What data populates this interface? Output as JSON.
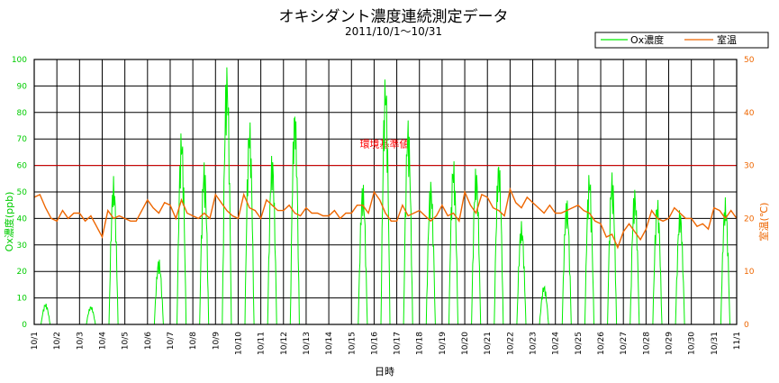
{
  "chart_data": {
    "type": "line",
    "title": "オキシダント濃度連続測定データ",
    "subtitle": "2011/10/1～10/31",
    "xlabel": "日時",
    "ylabel_left": "Ox濃度(ppb)",
    "ylabel_right": "室温(℃)",
    "x_tick_labels": [
      "10/1",
      "10/2",
      "10/3",
      "10/4",
      "10/5",
      "10/6",
      "10/7",
      "10/8",
      "10/9",
      "10/10",
      "10/11",
      "10/12",
      "10/13",
      "10/14",
      "10/15",
      "10/16",
      "10/17",
      "10/18",
      "10/19",
      "10/20",
      "10/21",
      "10/22",
      "10/23",
      "10/24",
      "10/25",
      "10/26",
      "10/27",
      "10/28",
      "10/29",
      "10/30",
      "10/31",
      "11/1"
    ],
    "yleft_ticks": [
      0,
      10,
      20,
      30,
      40,
      50,
      60,
      70,
      80,
      90,
      100
    ],
    "yright_ticks": [
      0,
      10,
      20,
      30,
      40,
      50
    ],
    "ylim_left": [
      0,
      100
    ],
    "ylim_right": [
      0,
      50
    ],
    "grid": true,
    "legend_position": "top-right",
    "reference_line": {
      "value": 60,
      "label": "環境基準値",
      "color": "#dd0000"
    },
    "series": [
      {
        "name": "Ox濃度",
        "axis": "left",
        "color": "#00ee00",
        "daily_peaks": [
          8,
          0,
          7,
          56,
          0,
          25,
          74,
          62,
          99,
          78,
          65,
          83,
          0,
          0,
          54,
          95,
          78,
          55,
          63,
          60,
          63,
          39,
          15,
          48,
          58,
          58,
          52,
          48,
          44,
          0,
          48
        ]
      },
      {
        "name": "室温",
        "axis": "right",
        "color": "#ee6600",
        "daily": [
          [
            0,
            24
          ],
          [
            0.25,
            24.5
          ],
          [
            0.5,
            22
          ],
          [
            0.75,
            20
          ],
          [
            1,
            19.5
          ],
          [
            1.25,
            21.5
          ],
          [
            1.5,
            20
          ],
          [
            1.75,
            21
          ],
          [
            2,
            21
          ],
          [
            2.25,
            19.5
          ],
          [
            2.5,
            20.5
          ],
          [
            2.75,
            18.5
          ],
          [
            3,
            16.5
          ],
          [
            3.25,
            21.5
          ],
          [
            3.5,
            20
          ],
          [
            3.75,
            20.5
          ],
          [
            4,
            20
          ],
          [
            4.25,
            19.5
          ],
          [
            4.5,
            19.5
          ],
          [
            4.75,
            21.5
          ],
          [
            5,
            23.5
          ],
          [
            5.25,
            22
          ],
          [
            5.5,
            21
          ],
          [
            5.75,
            23
          ],
          [
            6,
            22.5
          ],
          [
            6.25,
            20
          ],
          [
            6.5,
            23.5
          ],
          [
            6.75,
            21
          ],
          [
            7,
            20.5
          ],
          [
            7.25,
            20
          ],
          [
            7.5,
            21
          ],
          [
            7.75,
            20
          ],
          [
            8,
            24.5
          ],
          [
            8.25,
            23
          ],
          [
            8.5,
            21.5
          ],
          [
            8.75,
            20.5
          ],
          [
            9,
            20
          ],
          [
            9.25,
            24.5
          ],
          [
            9.5,
            22
          ],
          [
            9.75,
            21.5
          ],
          [
            10,
            20
          ],
          [
            10.25,
            23.5
          ],
          [
            10.5,
            22.5
          ],
          [
            10.75,
            21.5
          ],
          [
            11,
            21.5
          ],
          [
            11.25,
            22.5
          ],
          [
            11.5,
            21
          ],
          [
            11.75,
            20.5
          ],
          [
            12,
            22
          ],
          [
            12.25,
            21
          ],
          [
            12.5,
            21
          ],
          [
            12.75,
            20.5
          ],
          [
            13,
            20.5
          ],
          [
            13.25,
            21.5
          ],
          [
            13.5,
            20
          ],
          [
            13.75,
            21
          ],
          [
            14,
            21
          ],
          [
            14.25,
            22.5
          ],
          [
            14.5,
            22.5
          ],
          [
            14.75,
            21
          ],
          [
            15,
            25
          ],
          [
            15.25,
            23.5
          ],
          [
            15.5,
            21
          ],
          [
            15.75,
            19.5
          ],
          [
            16,
            19.5
          ],
          [
            16.25,
            22.5
          ],
          [
            16.5,
            20.5
          ],
          [
            16.75,
            21
          ],
          [
            17,
            21.5
          ],
          [
            17.25,
            20.5
          ],
          [
            17.5,
            19.5
          ],
          [
            17.75,
            20.5
          ],
          [
            18,
            22.5
          ],
          [
            18.25,
            20.5
          ],
          [
            18.5,
            21
          ],
          [
            18.75,
            19.5
          ],
          [
            19,
            25
          ],
          [
            19.25,
            22.5
          ],
          [
            19.5,
            21
          ],
          [
            19.75,
            24.5
          ],
          [
            20,
            24
          ],
          [
            20.25,
            22
          ],
          [
            20.5,
            21.5
          ],
          [
            20.75,
            20.5
          ],
          [
            21,
            25.5
          ],
          [
            21.25,
            23
          ],
          [
            21.5,
            22
          ],
          [
            21.75,
            24
          ],
          [
            22,
            23
          ],
          [
            22.25,
            22
          ],
          [
            22.5,
            21
          ],
          [
            22.75,
            22.5
          ],
          [
            23,
            21
          ],
          [
            23.25,
            21
          ],
          [
            23.5,
            21.5
          ],
          [
            23.75,
            22
          ],
          [
            24,
            22.5
          ],
          [
            24.25,
            21.5
          ],
          [
            24.5,
            21
          ],
          [
            24.75,
            19.5
          ],
          [
            25,
            19
          ],
          [
            25.25,
            16.5
          ],
          [
            25.5,
            17
          ],
          [
            25.75,
            14.5
          ],
          [
            26,
            17.5
          ],
          [
            26.25,
            19
          ],
          [
            26.5,
            17.5
          ],
          [
            26.75,
            16
          ],
          [
            27,
            18
          ],
          [
            27.25,
            21.5
          ],
          [
            27.5,
            20
          ],
          [
            27.75,
            19.5
          ],
          [
            28,
            20
          ],
          [
            28.25,
            22
          ],
          [
            28.5,
            21
          ],
          [
            28.75,
            20
          ],
          [
            29,
            20
          ],
          [
            29.25,
            18.5
          ],
          [
            29.5,
            19
          ],
          [
            29.75,
            18
          ],
          [
            30,
            22
          ],
          [
            30.25,
            21.5
          ],
          [
            30.5,
            20
          ],
          [
            30.75,
            21.5
          ],
          [
            31,
            20
          ]
        ]
      }
    ]
  }
}
